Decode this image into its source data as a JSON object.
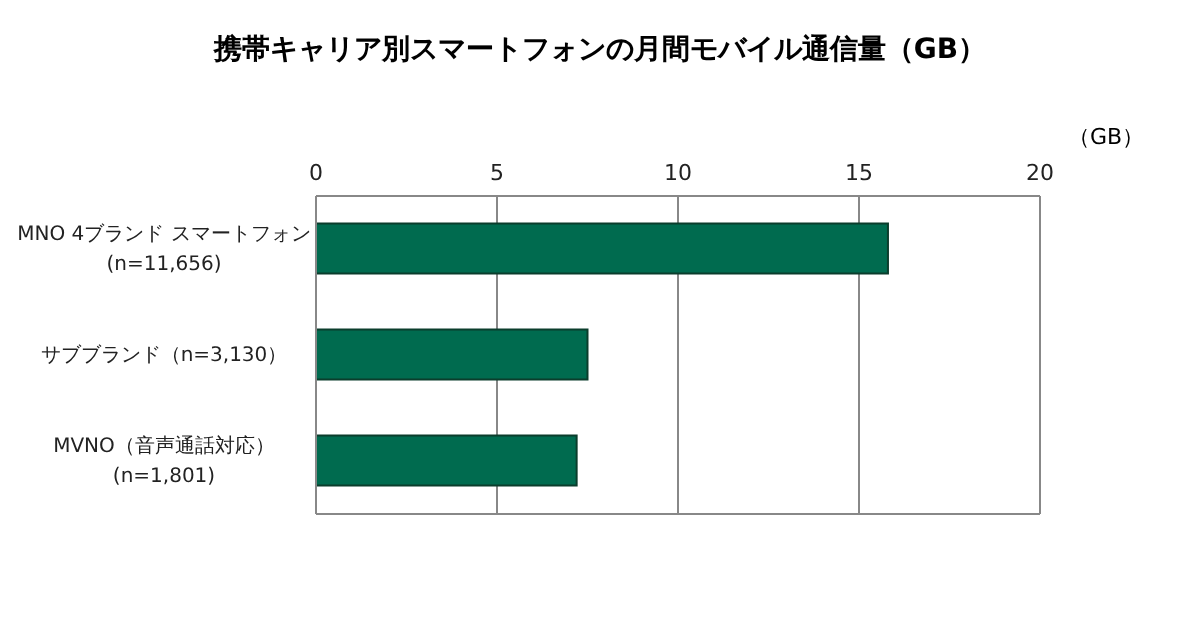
{
  "chart_data": {
    "type": "bar",
    "orientation": "horizontal",
    "title": "携帯キャリア別スマートフォンの月間モバイル通信量（GB）",
    "xlabel": "（GB）",
    "categories": [
      "MNO 4ブランド スマートフォン\n(n=11,656)",
      "サブブランド（n=3,130）",
      "MVNO（音声通話対応）\n(n=1,801)"
    ],
    "values": [
      15.8,
      7.5,
      7.2
    ],
    "color": "#006b4f",
    "xlim": [
      0,
      20
    ],
    "xticks": [
      0,
      5,
      10,
      15,
      20
    ],
    "grid": "x"
  }
}
